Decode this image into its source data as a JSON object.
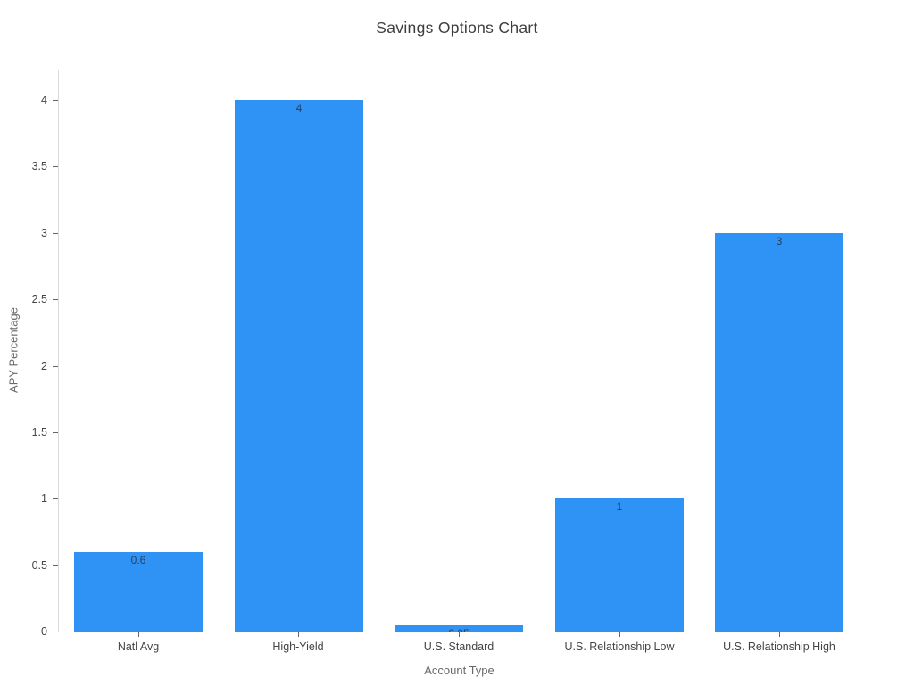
{
  "chart_data": {
    "type": "bar",
    "title": "Savings Options Chart",
    "xlabel": "Account Type",
    "ylabel": "APY Percentage",
    "categories": [
      "Natl Avg",
      "High-Yield",
      "U.S. Standard",
      "U.S. Relationship Low",
      "U.S. Relationship High"
    ],
    "values": [
      0.6,
      4,
      0.05,
      1,
      3
    ],
    "bar_labels": [
      "0.6",
      "4",
      "0.05",
      "1",
      "3"
    ],
    "bar_label_position": "inside-top",
    "yticks": [
      0,
      0.5,
      1,
      1.5,
      2,
      2.5,
      3,
      3.5,
      4
    ],
    "ytick_labels": [
      "0",
      "0.5",
      "1",
      "1.5",
      "2",
      "2.5",
      "3",
      "3.5",
      "4"
    ],
    "ylim": [
      0,
      4.23
    ],
    "grid": false,
    "legend": null,
    "colors": {
      "bar": "#2E93F5",
      "axis_line": "#D9D9D9",
      "tick_mark": "#666666",
      "tick_label": "#444444",
      "axis_title": "#696969",
      "title": "#3D3D3D",
      "bar_label": "#2A3F5F",
      "background": "#FFFFFF"
    }
  }
}
